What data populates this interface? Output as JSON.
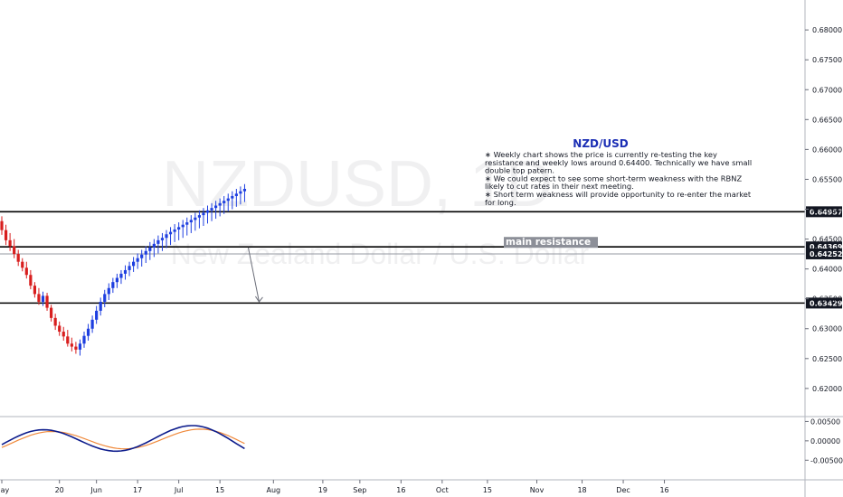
{
  "chart_data": {
    "type": "candlestick",
    "symbol": "NZDUSD",
    "symbol_description": "New Zealand Dollar / U.S. Dollar",
    "watermark": {
      "symbol": "NZDUSD, 1D",
      "description": "New Zealand Dollar / U.S. Dollar"
    },
    "price_axis": {
      "ylim": [
        0.6162,
        0.6838
      ],
      "ticks": [
        "0.68000",
        "0.67500",
        "0.67000",
        "0.66500",
        "0.66000",
        "0.65500",
        "0.65000",
        "0.64500",
        "0.64000",
        "0.63500",
        "0.63000",
        "0.62500",
        "0.62000"
      ]
    },
    "time_axis": {
      "labels": [
        {
          "text": "May",
          "index": 0
        },
        {
          "text": "20",
          "index": 14
        },
        {
          "text": "Jun",
          "index": 23
        },
        {
          "text": "17",
          "index": 33
        },
        {
          "text": "Jul",
          "index": 43
        },
        {
          "text": "15",
          "index": 53
        },
        {
          "text": "Aug",
          "index": 66
        },
        {
          "text": "19",
          "index": 78
        },
        {
          "text": "Sep",
          "index": 87
        },
        {
          "text": "16",
          "index": 97
        },
        {
          "text": "Oct",
          "index": 107
        },
        {
          "text": "15",
          "index": 118
        },
        {
          "text": "Nov",
          "index": 130
        },
        {
          "text": "18",
          "index": 141
        },
        {
          "text": "Dec",
          "index": 151
        },
        {
          "text": "16",
          "index": 161
        }
      ]
    },
    "candles": [
      [
        0.648,
        0.6488,
        0.6457,
        0.6465
      ],
      [
        0.6465,
        0.6474,
        0.644,
        0.6448
      ],
      [
        0.6448,
        0.646,
        0.643,
        0.6438
      ],
      [
        0.6438,
        0.645,
        0.6418,
        0.6425
      ],
      [
        0.6425,
        0.6432,
        0.6405,
        0.6412
      ],
      [
        0.6412,
        0.6418,
        0.6396,
        0.6402
      ],
      [
        0.6402,
        0.6412,
        0.6384,
        0.639
      ],
      [
        0.639,
        0.6398,
        0.6366,
        0.6372
      ],
      [
        0.6372,
        0.6378,
        0.6352,
        0.6358
      ],
      [
        0.6358,
        0.6368,
        0.634,
        0.6345
      ],
      [
        0.6345,
        0.6362,
        0.6338,
        0.6355
      ],
      [
        0.6355,
        0.636,
        0.633,
        0.6335
      ],
      [
        0.6335,
        0.634,
        0.6312,
        0.6318
      ],
      [
        0.6318,
        0.6325,
        0.6298,
        0.6305
      ],
      [
        0.6305,
        0.6312,
        0.6288,
        0.6295
      ],
      [
        0.6295,
        0.6303,
        0.628,
        0.6287
      ],
      [
        0.6287,
        0.6298,
        0.627,
        0.6275
      ],
      [
        0.6275,
        0.6285,
        0.6262,
        0.627
      ],
      [
        0.627,
        0.6278,
        0.6258,
        0.6265
      ],
      [
        0.6265,
        0.6282,
        0.6255,
        0.6275
      ],
      [
        0.6275,
        0.6295,
        0.6268,
        0.6288
      ],
      [
        0.6288,
        0.6308,
        0.628,
        0.63
      ],
      [
        0.63,
        0.6322,
        0.6293,
        0.6315
      ],
      [
        0.6315,
        0.6338,
        0.6308,
        0.633
      ],
      [
        0.633,
        0.6352,
        0.6322,
        0.6345
      ],
      [
        0.6345,
        0.6365,
        0.6336,
        0.6358
      ],
      [
        0.6358,
        0.6376,
        0.6348,
        0.6368
      ],
      [
        0.6368,
        0.6385,
        0.636,
        0.6378
      ],
      [
        0.6378,
        0.6392,
        0.6368,
        0.6385
      ],
      [
        0.6385,
        0.6398,
        0.6375,
        0.6392
      ],
      [
        0.6392,
        0.6406,
        0.6382,
        0.6398
      ],
      [
        0.6398,
        0.6412,
        0.6388,
        0.6405
      ],
      [
        0.6405,
        0.642,
        0.6395,
        0.6412
      ],
      [
        0.6412,
        0.6426,
        0.64,
        0.6418
      ],
      [
        0.6418,
        0.6432,
        0.6404,
        0.6424
      ],
      [
        0.6424,
        0.6438,
        0.641,
        0.643
      ],
      [
        0.643,
        0.6445,
        0.6415,
        0.6436
      ],
      [
        0.6436,
        0.645,
        0.642,
        0.6442
      ],
      [
        0.6442,
        0.6456,
        0.6426,
        0.6448
      ],
      [
        0.6448,
        0.646,
        0.643,
        0.6452
      ],
      [
        0.6452,
        0.6465,
        0.6435,
        0.6458
      ],
      [
        0.6458,
        0.647,
        0.644,
        0.6462
      ],
      [
        0.6462,
        0.6475,
        0.6445,
        0.6466
      ],
      [
        0.6466,
        0.6478,
        0.6448,
        0.647
      ],
      [
        0.647,
        0.6482,
        0.6452,
        0.6474
      ],
      [
        0.6474,
        0.6486,
        0.6456,
        0.6478
      ],
      [
        0.6478,
        0.649,
        0.646,
        0.6482
      ],
      [
        0.6482,
        0.6494,
        0.6464,
        0.6486
      ],
      [
        0.6486,
        0.6498,
        0.6468,
        0.649
      ],
      [
        0.649,
        0.6502,
        0.6472,
        0.6494
      ],
      [
        0.6494,
        0.6506,
        0.6476,
        0.6498
      ],
      [
        0.6498,
        0.651,
        0.648,
        0.6502
      ],
      [
        0.6502,
        0.6514,
        0.6484,
        0.6506
      ],
      [
        0.6506,
        0.6518,
        0.6488,
        0.651
      ],
      [
        0.651,
        0.6522,
        0.6492,
        0.6514
      ],
      [
        0.6514,
        0.6526,
        0.6496,
        0.6518
      ],
      [
        0.6518,
        0.653,
        0.65,
        0.6522
      ],
      [
        0.6522,
        0.6534,
        0.6504,
        0.6526
      ],
      [
        0.6526,
        0.6538,
        0.6508,
        0.653
      ],
      [
        0.653,
        0.6542,
        0.6512,
        0.6534
      ]
    ],
    "candles_note": "daily OHLC [open, high, low, close], estimated from the plot",
    "horizontal_lines": [
      {
        "price": 0.64957,
        "label": "0.64957"
      },
      {
        "price": 0.64369,
        "label": "0.64369"
      },
      {
        "price": 0.64252,
        "label": "0.64252"
      },
      {
        "price": 0.63429,
        "label": "0.63429"
      }
    ],
    "resistance_label": "main resistance",
    "annotation": {
      "title": "NZD/USD",
      "lines": [
        "∗ Weekly chart shows the price is currently re-testing the key",
        "resistance and weekly lows around 0.64400. Technically we have small",
        "double top patern.",
        "∗ We could expect to see some short-term weakness with the RBNZ",
        "likely to cut rates in their next meeting.",
        "∗ Short term weakness will provide opportunity to  re-enter the market",
        "for long."
      ]
    },
    "indicator": {
      "ylim": [
        -0.0082,
        0.0058
      ],
      "ticks": [
        "0.00500",
        "0.00000",
        "-0.00500"
      ],
      "series": [
        {
          "color": "#0d1c8c"
        },
        {
          "color": "#f08a3c"
        }
      ]
    },
    "colors": {
      "up": "#1e3fe0",
      "down": "#d81e1e",
      "line": "#000000",
      "tag": "#131722"
    }
  }
}
